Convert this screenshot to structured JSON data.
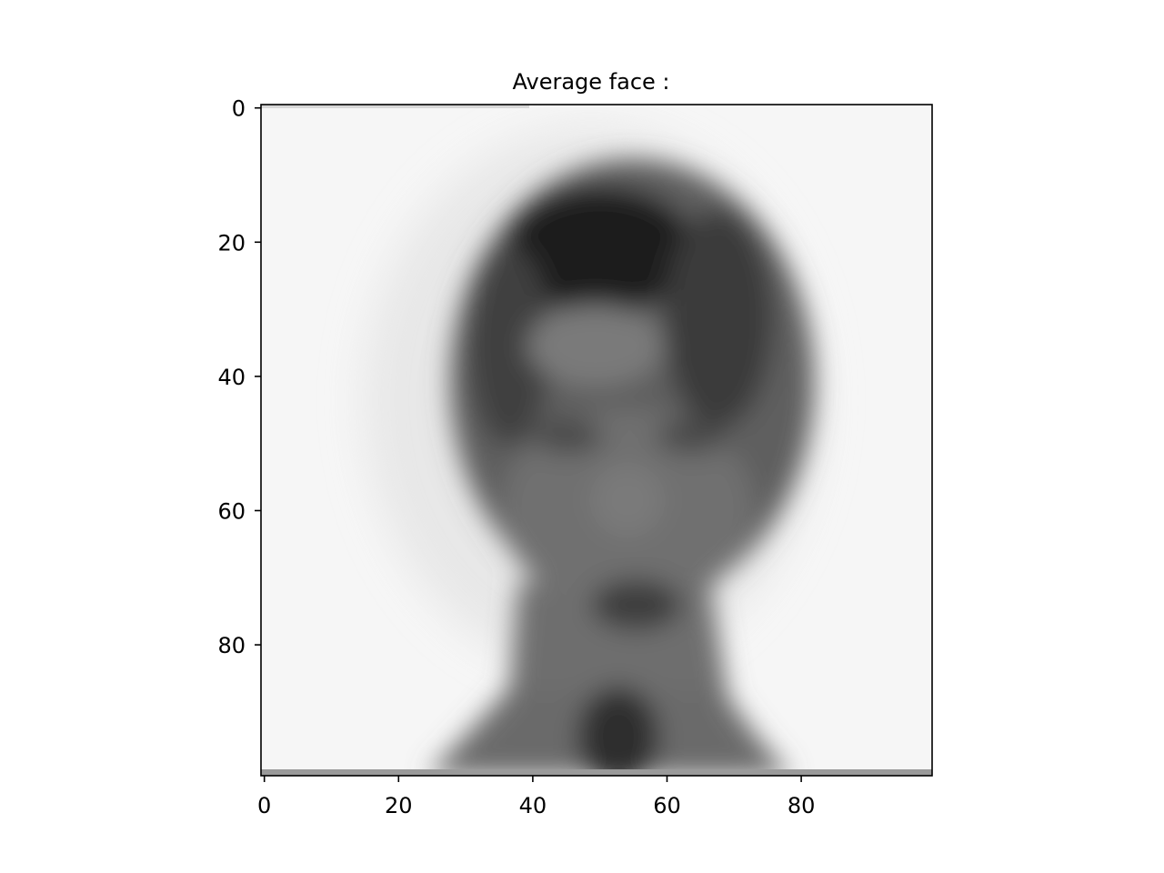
{
  "chart_data": {
    "type": "heatmap",
    "title": "Average face :",
    "xlabel": "",
    "ylabel": "",
    "colormap": "gray",
    "image_size": [
      100,
      100
    ],
    "xlim": [
      -0.5,
      99.5
    ],
    "ylim": [
      99.5,
      -0.5
    ],
    "x_ticks": [
      0,
      20,
      40,
      60,
      80
    ],
    "y_ticks": [
      0,
      20,
      40,
      60,
      80
    ],
    "x_tick_labels": [
      "0",
      "20",
      "40",
      "60",
      "80"
    ],
    "y_tick_labels": [
      "0",
      "20",
      "40",
      "60",
      "80"
    ],
    "grid": false,
    "colors": {
      "background": "#ffffff",
      "axes": "#000000",
      "text": "#000000"
    }
  }
}
